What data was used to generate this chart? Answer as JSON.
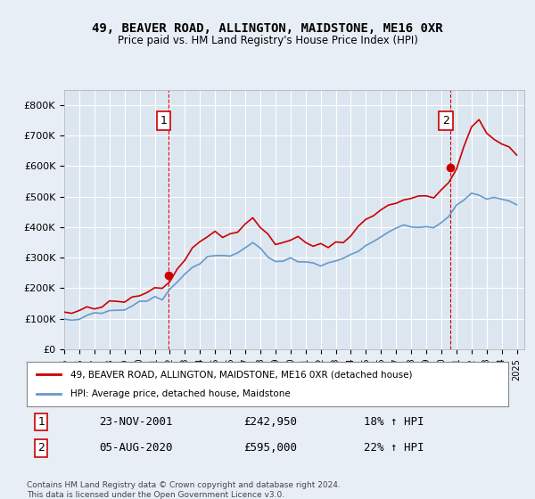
{
  "title1": "49, BEAVER ROAD, ALLINGTON, MAIDSTONE, ME16 0XR",
  "title2": "Price paid vs. HM Land Registry's House Price Index (HPI)",
  "legend_line1": "49, BEAVER ROAD, ALLINGTON, MAIDSTONE, ME16 0XR (detached house)",
  "legend_line2": "HPI: Average price, detached house, Maidstone",
  "annotation1_label": "1",
  "annotation1_date": "23-NOV-2001",
  "annotation1_price": "£242,950",
  "annotation1_hpi": "18% ↑ HPI",
  "annotation2_label": "2",
  "annotation2_date": "05-AUG-2020",
  "annotation2_price": "£595,000",
  "annotation2_hpi": "22% ↑ HPI",
  "footer": "Contains HM Land Registry data © Crown copyright and database right 2024.\nThis data is licensed under the Open Government Licence v3.0.",
  "house_color": "#cc0000",
  "hpi_color": "#6699cc",
  "bg_color": "#e8eef5",
  "plot_bg": "#dce6f0",
  "grid_color": "#ffffff",
  "vline_color": "#cc0000",
  "marker1_x": 2001.9,
  "marker1_y": 242950,
  "marker2_x": 2020.6,
  "marker2_y": 595000,
  "ylim": [
    0,
    850000
  ],
  "xlim_start": 1995.0,
  "xlim_end": 2025.5
}
